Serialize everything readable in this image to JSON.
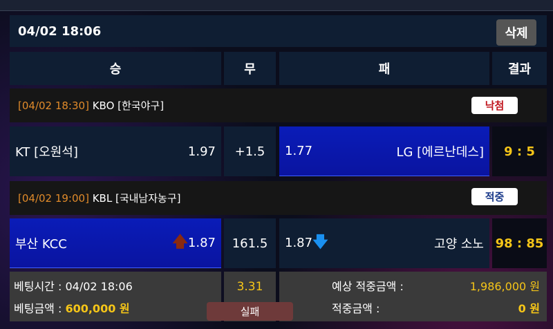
{
  "header": {
    "datetime": "04/02 18:06",
    "delete_label": "삭제"
  },
  "columns": {
    "win": "승",
    "draw": "무",
    "lose": "패",
    "result": "결과"
  },
  "matches": [
    {
      "time": "[04/02 18:30]",
      "league": "KBO [한국야구]",
      "status": "낙첨",
      "status_color": "#c0141c",
      "home": "KT [오원석]",
      "home_odds": "1.97",
      "draw": "+1.5",
      "away_odds": "1.77",
      "away": "LG [에르난데스]",
      "score": "9 : 5",
      "selected": "away"
    },
    {
      "time": "[04/02 19:00]",
      "league": "KBL [국내남자농구]",
      "status": "적중",
      "status_color": "#1a3a8a",
      "home": "부산 KCC",
      "home_odds": "1.87",
      "draw": "161.5",
      "away_odds": "1.87",
      "away": "고양 소노",
      "score": "98 : 85",
      "selected": "home",
      "home_arrow": "up-arrow-icon",
      "away_arrow": "down-arrow-icon"
    }
  ],
  "summary": {
    "bet_time_label": "베팅시간 :",
    "bet_time": "04/02 18:06",
    "bet_amount_label": "베팅금액 :",
    "bet_amount": "600,000 원",
    "total_odds": "3.31",
    "result": "실패",
    "expected_label": "예상 적중금액 :",
    "expected": "1,986,000 원",
    "won_label": "적중금액 :",
    "won": "0 원"
  }
}
